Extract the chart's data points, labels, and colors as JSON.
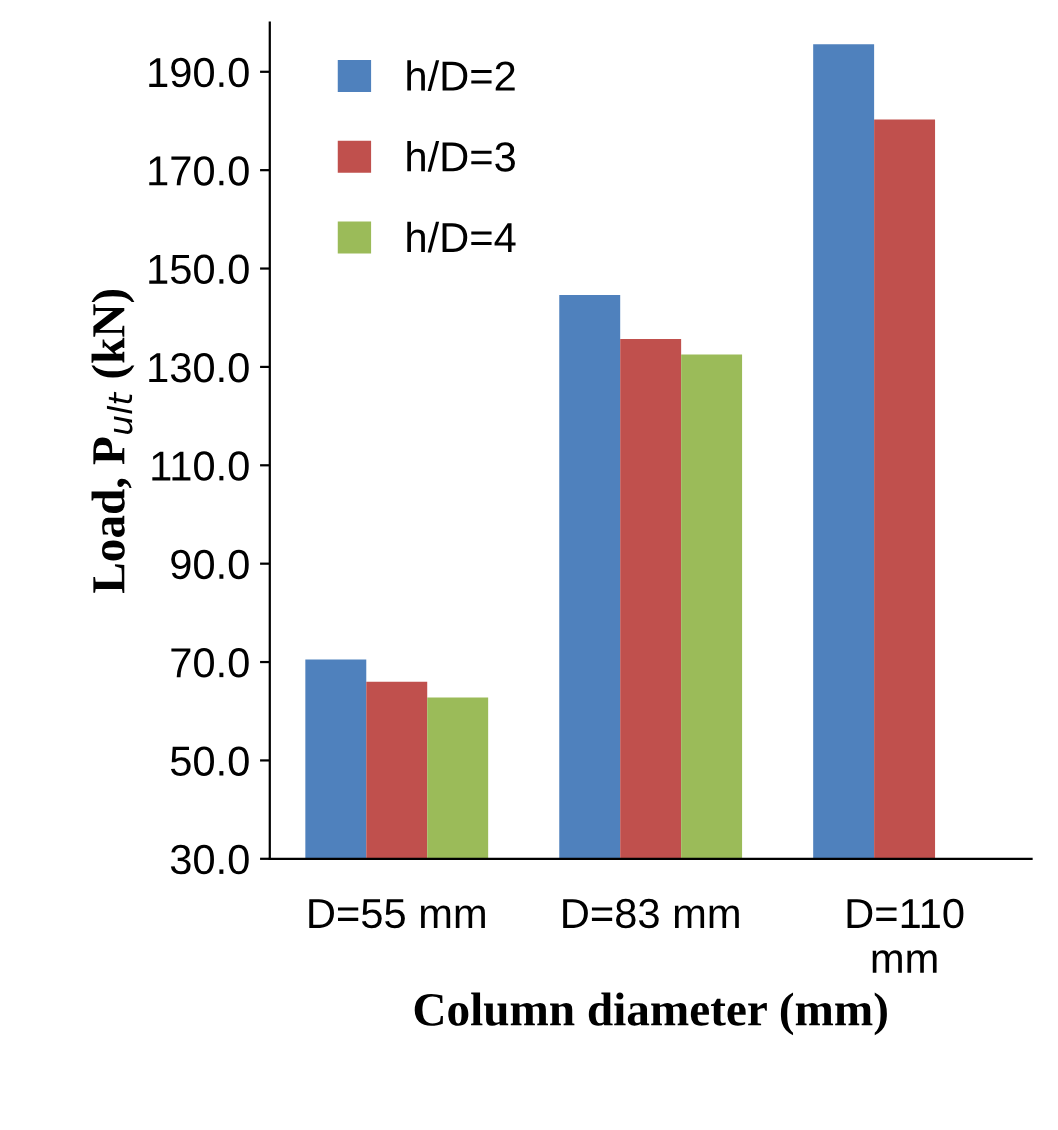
{
  "chart_data": {
    "type": "bar",
    "xlabel": "Column diameter (mm)",
    "ylabel": "Load, P$_{ult}$ (kN)",
    "categories": [
      "D=55 mm",
      "D=83 mm",
      "D=110\nmm"
    ],
    "series": [
      {
        "name": "h/D=2",
        "color": "#4f81bd",
        "values": [
          70.5,
          144.6,
          195.6
        ]
      },
      {
        "name": "h/D=3",
        "color": "#c0504d",
        "values": [
          66.0,
          135.7,
          180.3
        ]
      },
      {
        "name": "h/D=4",
        "color": "#9bbb59",
        "values": [
          62.8,
          132.5,
          null
        ]
      }
    ],
    "ylim": [
      30,
      200
    ],
    "yticks": [
      {
        "value": 30,
        "label": "30.0"
      },
      {
        "value": 50,
        "label": "50.0"
      },
      {
        "value": 70,
        "label": "70.0"
      },
      {
        "value": 90,
        "label": "90.0"
      },
      {
        "value": 110,
        "label": "110.0"
      },
      {
        "value": 130,
        "label": "130.0"
      },
      {
        "value": 150,
        "label": "150.0"
      },
      {
        "value": 170,
        "label": "170.0"
      },
      {
        "value": 190,
        "label": "190.0"
      }
    ],
    "grid": false,
    "legend": "top left"
  }
}
